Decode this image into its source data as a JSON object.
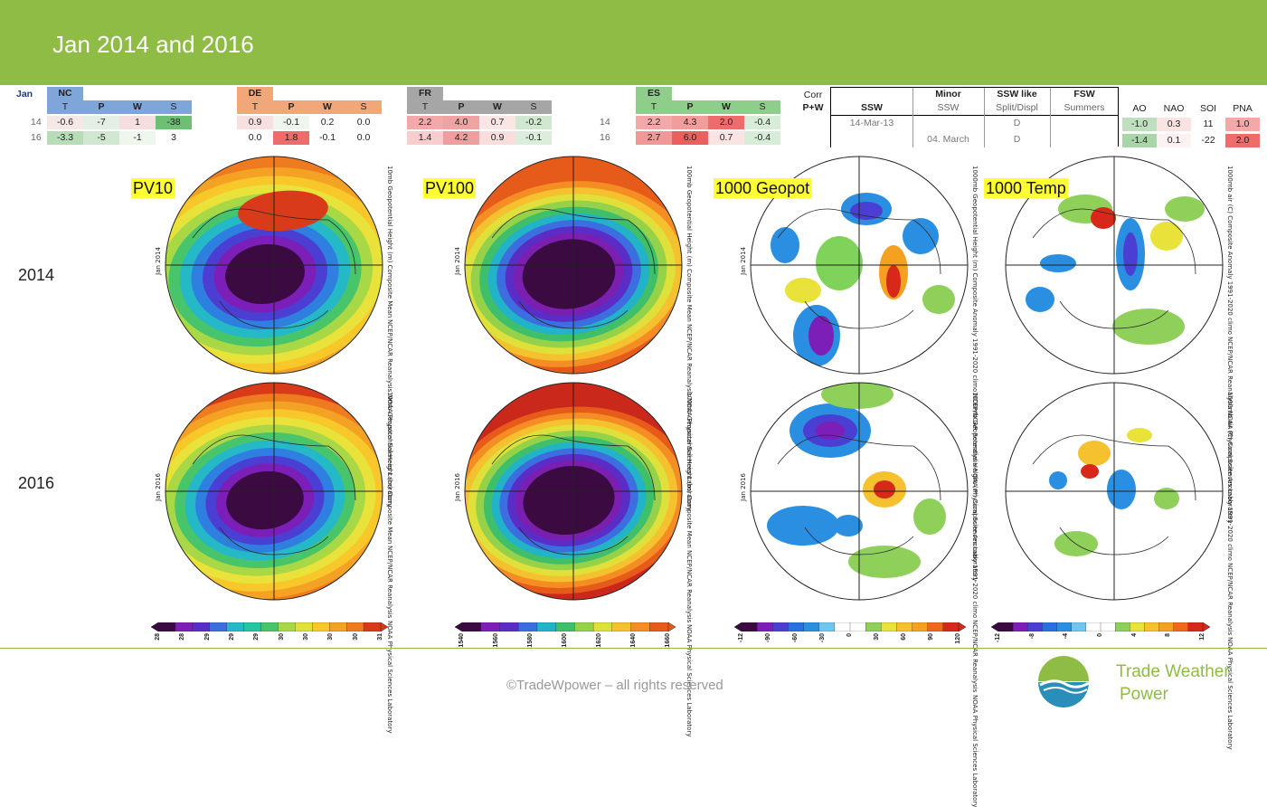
{
  "title": "Jan 2014 and 2016",
  "jan_label": "Jan",
  "regions": [
    {
      "name": "NC",
      "cols": [
        "T",
        "P",
        "W",
        "S"
      ],
      "rows": [
        {
          "year": "14",
          "values": [
            "-0.6",
            "-7",
            "1",
            "-38"
          ],
          "colors": [
            "#f7e8e8",
            "#e3f0e3",
            "#f7dede",
            "#6cbf73"
          ]
        },
        {
          "year": "16",
          "values": [
            "-3.3",
            "-5",
            "-1",
            "3"
          ],
          "colors": [
            "#b7dcb7",
            "#d0e8d0",
            "#eef6ee",
            "#ffffff"
          ]
        }
      ],
      "head": "#7ea6d8"
    },
    {
      "name": "DE",
      "cols": [
        "T",
        "P",
        "W",
        "S"
      ],
      "rows": [
        {
          "year": "",
          "values": [
            "0.9",
            "-0.1",
            "0.2",
            "0.0"
          ],
          "colors": [
            "#f9e0e0",
            "#eef6ee",
            "#ffffff",
            "#ffffff"
          ]
        },
        {
          "year": "",
          "values": [
            "0.0",
            "1.8",
            "-0.1",
            "0.0"
          ],
          "colors": [
            "#ffffff",
            "#ee6c6c",
            "#ffffff",
            "#ffffff"
          ]
        }
      ],
      "head": "#f1a77a"
    },
    {
      "name": "FR",
      "cols": [
        "T",
        "P",
        "W",
        "S"
      ],
      "rows": [
        {
          "year": "",
          "values": [
            "2.2",
            "4.0",
            "0.7",
            "-0.2"
          ],
          "colors": [
            "#f3a9a9",
            "#f0a3a3",
            "#fbe6e6",
            "#cfe8cf"
          ]
        },
        {
          "year": "",
          "values": [
            "1.4",
            "4.2",
            "0.9",
            "-0.1"
          ],
          "colors": [
            "#f7cdcd",
            "#ef9e9e",
            "#fadede",
            "#dbeedb"
          ]
        }
      ],
      "head": "#a6a6a6"
    },
    {
      "name": "ES",
      "cols": [
        "T",
        "P",
        "W",
        "S"
      ],
      "rows": [
        {
          "year": "14",
          "values": [
            "2.2",
            "4.3",
            "2.0",
            "-0.4"
          ],
          "colors": [
            "#f3a9a9",
            "#f29c9c",
            "#ee6c6c",
            "#d8edd8"
          ]
        },
        {
          "year": "16",
          "values": [
            "2.7",
            "6.0",
            "0.7",
            "-0.4"
          ],
          "colors": [
            "#f09797",
            "#ec5f5f",
            "#f9e3e3",
            "#d8edd8"
          ]
        }
      ],
      "head": "#8fce8a"
    }
  ],
  "corr": {
    "line1": "Corr",
    "line2": "P+W"
  },
  "ssw": {
    "headers_top": [
      "",
      "Minor",
      "SSW like",
      "FSW"
    ],
    "headers_bottom": [
      "SSW",
      "SSW",
      "Split/Displ",
      "Summers"
    ],
    "rows": [
      [
        "14-Mar-13",
        "",
        "D",
        ""
      ],
      [
        "",
        "04. March",
        "D",
        ""
      ]
    ]
  },
  "indices": {
    "headers": [
      "AO",
      "NAO",
      "SOI",
      "PNA"
    ],
    "rows": [
      {
        "values": [
          "-1.0",
          "0.3",
          "11",
          "1.0"
        ],
        "colors": [
          "#bfe0bf",
          "#f9e3e3",
          "#ffffff",
          "#f4a9a9"
        ]
      },
      {
        "values": [
          "-1.4",
          "0.1",
          "-22",
          "2.0"
        ],
        "colors": [
          "#a9d6a9",
          "#fdf2f2",
          "#ffffff",
          "#ee6c6c"
        ]
      }
    ]
  },
  "panels": [
    "PV10",
    "PV100",
    "1000 Geopot",
    "1000 Temp"
  ],
  "years": [
    "2014",
    "2016"
  ],
  "map_text": {
    "pv10": {
      "right_a": "10mb Geopotential Height (m) Composite Mean",
      "right_b": "NCEP/NCAR Reanalysis",
      "right_c": "NOAA Physical Sciences Laboratory"
    },
    "pv100": {
      "right_a": "100mb Geopotential Height (m) Composite Mean",
      "right_b": "NCEP/NCAR Reanalysis",
      "right_c": "NOAA Physical Sciences Laboratory"
    },
    "geo": {
      "right_a": "1000mb Geopotential Height (m) Composite Anomaly 1991-2020 climo",
      "right_b": "NCEP/NCAR Reanalysis",
      "right_c": "NOAA Physical Sciences Laboratory"
    },
    "temp": {
      "right_a": "1000mb air (C) Composite Anomaly 1991-2020 climo",
      "right_b": "NCEP/NCAR Reanalysis",
      "right_c": "NOAA Physical Sciences Laboratory"
    },
    "jan2014": "Jan 2014",
    "jan2016": "Jan 2016"
  },
  "colorbars": [
    {
      "ticks": [
        "28",
        "28",
        "29",
        "29",
        "29",
        "30",
        "30",
        "30",
        "30",
        "31"
      ]
    },
    {
      "ticks": [
        "1540",
        "1560",
        "1580",
        "1600",
        "1620",
        "1640",
        "1660"
      ]
    },
    {
      "ticks": [
        "-12",
        "-90",
        "-60",
        "-30",
        "0",
        "30",
        "60",
        "90",
        "120"
      ]
    },
    {
      "ticks": [
        "-12",
        "-8",
        "-4",
        "0",
        "4",
        "8",
        "12"
      ]
    }
  ],
  "footer": {
    "copyright": "©TradeWpower – all rights reserved",
    "brand_line1": "Trade Weather",
    "brand_line2": "Power"
  }
}
